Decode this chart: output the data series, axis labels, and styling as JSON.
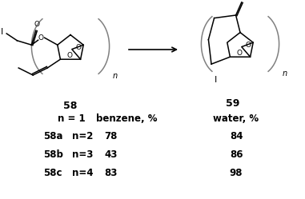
{
  "background_color": "#ffffff",
  "compound_58_label": "58",
  "compound_59_label": "59",
  "rows": [
    {
      "label": "58a",
      "n": "n=2",
      "benzene": "78",
      "water": "84"
    },
    {
      "label": "58b",
      "n": "n=3",
      "benzene": "43",
      "water": "86"
    },
    {
      "label": "58c",
      "n": "n=4",
      "benzene": "83",
      "water": "98"
    }
  ],
  "font_size_table": 8.5,
  "font_weight": "bold"
}
